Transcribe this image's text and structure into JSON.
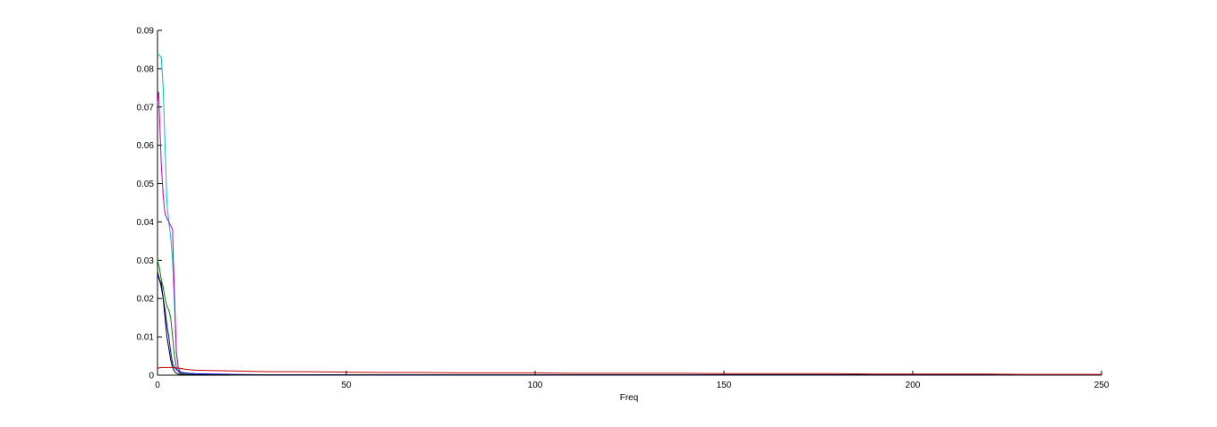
{
  "chart_data": {
    "type": "line",
    "title": "",
    "xlabel": "Freq",
    "ylabel": "",
    "xlim": [
      0,
      250
    ],
    "ylim": [
      0,
      0.09
    ],
    "xticks": [
      0,
      50,
      100,
      150,
      200,
      250
    ],
    "xtick_labels": [
      "0",
      "50",
      "100",
      "150",
      "200",
      "250"
    ],
    "yticks": [
      0,
      0.01,
      0.02,
      0.03,
      0.04,
      0.05,
      0.06,
      0.07,
      0.08,
      0.09
    ],
    "ytick_labels": [
      "0",
      "0.01",
      "0.02",
      "0.03",
      "0.04",
      "0.05",
      "0.06",
      "0.07",
      "0.08",
      "0.09"
    ],
    "grid": false,
    "legend": "none",
    "series": [
      {
        "color": "#00bfbf",
        "x": [
          0,
          1,
          1.5,
          2,
          2.5,
          3,
          3.5,
          4,
          4.5,
          5,
          5.5,
          6,
          7,
          10,
          20,
          250
        ],
        "y": [
          0.084,
          0.083,
          0.075,
          0.06,
          0.045,
          0.04,
          0.036,
          0.03,
          0.018,
          0.006,
          0.002,
          0.0008,
          0.0004,
          0.0002,
          0.0001,
          0.0001
        ]
      },
      {
        "color": "#bf00bf",
        "x": [
          0,
          0.3,
          1,
          1.5,
          2,
          2.5,
          3,
          3.5,
          4,
          4.2,
          5,
          5.5,
          6,
          7,
          10,
          20,
          250
        ],
        "y": [
          0.071,
          0.074,
          0.055,
          0.047,
          0.042,
          0.041,
          0.04,
          0.039,
          0.038,
          0.03,
          0.006,
          0.002,
          0.0008,
          0.0004,
          0.0002,
          0.0001,
          0.0001
        ]
      },
      {
        "color": "#008000",
        "x": [
          0,
          0.5,
          1,
          1.5,
          2,
          2.5,
          3,
          3.5,
          4,
          4.5,
          5,
          5.5,
          6,
          7,
          10,
          20,
          250
        ],
        "y": [
          0.03,
          0.028,
          0.025,
          0.023,
          0.02,
          0.018,
          0.017,
          0.015,
          0.01,
          0.005,
          0.002,
          0.001,
          0.0005,
          0.0003,
          0.0002,
          0.0001,
          0.0001
        ]
      },
      {
        "color": "#0000ff",
        "x": [
          0,
          0.5,
          1,
          1.5,
          2,
          2.5,
          3,
          3.5,
          4,
          4.5,
          5,
          6,
          8,
          10,
          15,
          20,
          30,
          250
        ],
        "y": [
          0.026,
          0.025,
          0.023,
          0.02,
          0.017,
          0.013,
          0.01,
          0.006,
          0.003,
          0.002,
          0.0015,
          0.0008,
          0.0005,
          0.0004,
          0.0003,
          0.0002,
          0.0001,
          0.0001
        ]
      },
      {
        "color": "#000000",
        "x": [
          0,
          0.5,
          1,
          1.5,
          2,
          2.5,
          3,
          3.5,
          4,
          4.5,
          5,
          5.5,
          6,
          7,
          10,
          250
        ],
        "y": [
          0.027,
          0.025,
          0.024,
          0.02,
          0.015,
          0.01,
          0.007,
          0.004,
          0.002,
          0.001,
          0.0005,
          0.0003,
          0.0002,
          0.0001,
          0.0001,
          0.0001
        ]
      },
      {
        "color": "#bf0000",
        "x": [
          0,
          1,
          2,
          3,
          4,
          5,
          6,
          7,
          8,
          9,
          10,
          15,
          20,
          25,
          30,
          40,
          50,
          60,
          70,
          80,
          90,
          100,
          110,
          120,
          130,
          140,
          150,
          160,
          170,
          180,
          190,
          200,
          210,
          220,
          230,
          240,
          250
        ],
        "y": [
          0.0018,
          0.002,
          0.002,
          0.002,
          0.002,
          0.0019,
          0.0018,
          0.0016,
          0.0015,
          0.0014,
          0.0013,
          0.0012,
          0.0011,
          0.001,
          0.0009,
          0.0009,
          0.0008,
          0.0007,
          0.0007,
          0.0006,
          0.0006,
          0.0006,
          0.0005,
          0.0005,
          0.0005,
          0.0005,
          0.0004,
          0.0004,
          0.0004,
          0.0004,
          0.0003,
          0.0003,
          0.0003,
          0.0003,
          0.0002,
          0.0002,
          0.0002
        ]
      }
    ]
  }
}
